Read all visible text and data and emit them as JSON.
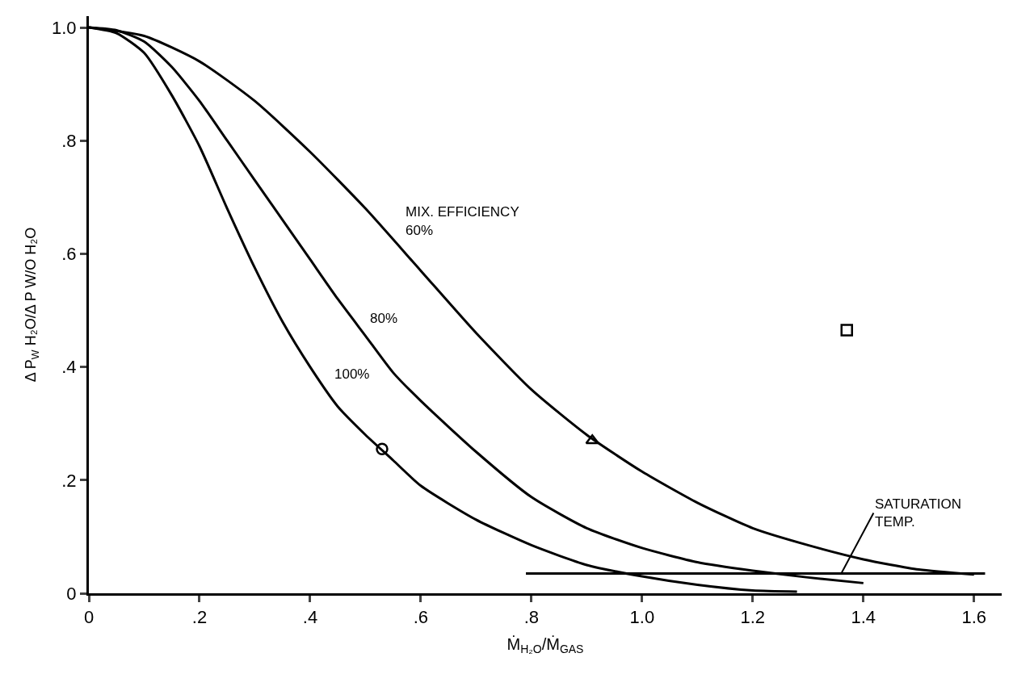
{
  "chart_data": {
    "type": "line",
    "xlabel": "Ṁ$_{H₂O}$/Ṁ$_{GAS}$",
    "ylabel": "Δ P$_{W}$ H₂O/Δ P W/O H₂O",
    "xlim": [
      0,
      1.65
    ],
    "ylim": [
      0,
      1.02
    ],
    "xticks": [
      0,
      {
        "value": 0.2,
        "label": ".2"
      },
      {
        "value": 0.4,
        "label": ".4"
      },
      {
        "value": 0.6,
        "label": ".6"
      },
      {
        "value": 0.8,
        "label": ".8"
      },
      {
        "value": 1.0,
        "label": "1.0"
      },
      {
        "value": 1.2,
        "label": "1.2"
      },
      {
        "value": 1.4,
        "label": "1.4"
      },
      {
        "value": 1.6,
        "label": "1.6"
      }
    ],
    "yticks": [
      0,
      {
        "value": 0.2,
        "label": ".2"
      },
      {
        "value": 0.4,
        "label": ".4"
      },
      {
        "value": 0.6,
        "label": ".6"
      },
      {
        "value": 0.8,
        "label": ".8"
      },
      {
        "value": 1.0,
        "label": "1.0"
      }
    ],
    "legend": false,
    "series": [
      {
        "name": "100%",
        "color": "#000000",
        "marker": "none",
        "x": [
          0,
          0.05,
          0.1,
          0.15,
          0.2,
          0.25,
          0.3,
          0.35,
          0.4,
          0.45,
          0.5,
          0.55,
          0.6,
          0.7,
          0.8,
          0.9,
          1.0,
          1.1,
          1.2,
          1.28
        ],
        "values": [
          1.0,
          0.99,
          0.955,
          0.88,
          0.79,
          0.68,
          0.575,
          0.48,
          0.4,
          0.33,
          0.28,
          0.235,
          0.19,
          0.13,
          0.085,
          0.05,
          0.03,
          0.015,
          0.005,
          0.003
        ]
      },
      {
        "name": "80%",
        "color": "#000000",
        "marker": "none",
        "x": [
          0,
          0.05,
          0.1,
          0.15,
          0.2,
          0.25,
          0.3,
          0.35,
          0.4,
          0.45,
          0.5,
          0.55,
          0.6,
          0.7,
          0.8,
          0.9,
          1.0,
          1.1,
          1.2,
          1.3,
          1.4
        ],
        "values": [
          1.0,
          0.995,
          0.975,
          0.93,
          0.87,
          0.8,
          0.73,
          0.66,
          0.59,
          0.52,
          0.455,
          0.39,
          0.34,
          0.25,
          0.17,
          0.115,
          0.08,
          0.055,
          0.04,
          0.028,
          0.018
        ]
      },
      {
        "name": "60%",
        "color": "#000000",
        "marker": "none",
        "x": [
          0,
          0.1,
          0.2,
          0.3,
          0.4,
          0.5,
          0.6,
          0.7,
          0.8,
          0.9,
          1.0,
          1.1,
          1.2,
          1.3,
          1.4,
          1.5,
          1.6
        ],
        "values": [
          1.0,
          0.985,
          0.94,
          0.87,
          0.78,
          0.68,
          0.57,
          0.46,
          0.36,
          0.28,
          0.215,
          0.16,
          0.115,
          0.085,
          0.06,
          0.042,
          0.033
        ]
      },
      {
        "color": "#000000",
        "marker": "none",
        "x": [
          0.79,
          1.62
        ],
        "values": [
          0.035,
          0.035
        ]
      },
      {
        "type": "scatter",
        "color": "#000000",
        "marker": "circle",
        "x": [
          0.53
        ],
        "values": [
          0.255
        ]
      },
      {
        "type": "scatter",
        "color": "#000000",
        "marker": "triangle",
        "x": [
          0.91
        ],
        "values": [
          0.27
        ]
      },
      {
        "type": "scatter",
        "color": "#000000",
        "marker": "square",
        "x": [
          1.37
        ],
        "values": [
          0.465
        ]
      }
    ],
    "annotations": [
      "MIX. EFFICIENCY",
      {
        "text": "SATURATION\nTEMP.",
        "x": 1.36,
        "y": 0.035
      }
    ]
  }
}
